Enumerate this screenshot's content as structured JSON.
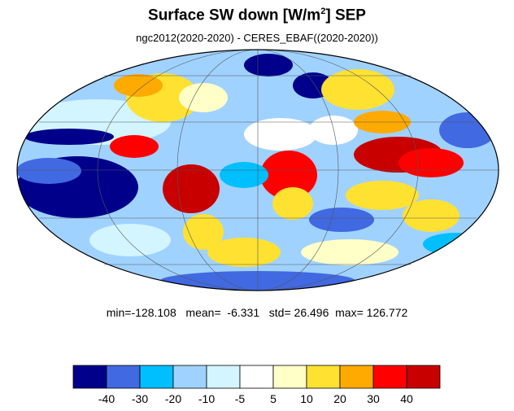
{
  "title": {
    "main": "Surface SW down [W/m",
    "superscript": "2",
    "suffix": "]  SEP"
  },
  "subtitle": "ngc2012(2020-2020) - CERES_EBAF((2020-2020))",
  "stats": {
    "min_label": "min=",
    "min": "-128.108",
    "mean_label": "mean=",
    "mean": "-6.331",
    "std_label": "std=",
    "std": "26.496",
    "max_label": "max=",
    "max": "126.772"
  },
  "colorbar": {
    "colors": [
      "#00008b",
      "#4169e1",
      "#00bfff",
      "#a0d2ff",
      "#d2f5ff",
      "#ffffff",
      "#ffffc8",
      "#ffe132",
      "#ffaa00",
      "#ff0000",
      "#c80000"
    ],
    "tick_labels": [
      "-40",
      "-30",
      "-20",
      "-10",
      "-5",
      "5",
      "10",
      "20",
      "30",
      "40"
    ]
  },
  "map": {
    "projection": "Mollweide",
    "ocean_base_color": "#a0d2ff"
  }
}
